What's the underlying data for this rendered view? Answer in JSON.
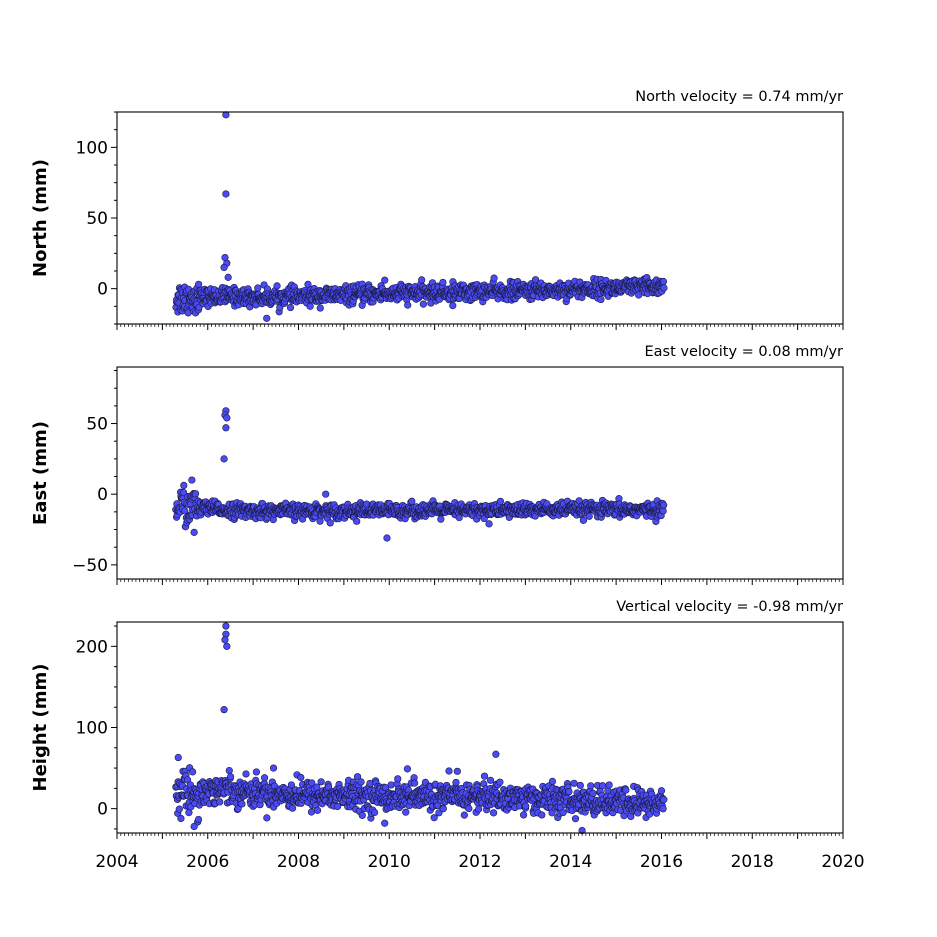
{
  "chart_data": [
    {
      "type": "scatter",
      "title": "North velocity = 0.74 mm/yr",
      "xlabel": "",
      "ylabel": "North (mm)",
      "xlim": [
        2004,
        2020
      ],
      "ylim": [
        -25,
        125
      ],
      "xticks": [
        2004,
        2006,
        2008,
        2010,
        2012,
        2014,
        2016,
        2018,
        2020
      ],
      "yticks": [
        0,
        50,
        100
      ],
      "x_tick_labels_visible": false,
      "marker_color": "#4b4bf5",
      "marker_edge": "#1a1a40",
      "span": [
        2005.3,
        2016.05
      ],
      "series": [
        {
          "x": [
            2005.3,
            2005.8,
            2006.4,
            2007.0,
            2007.5,
            2008.0,
            2008.5,
            2009.0,
            2009.5,
            2010.0,
            2010.5,
            2011.0,
            2011.5,
            2012.0,
            2012.5,
            2013.0,
            2013.5,
            2014.0,
            2014.5,
            2015.0,
            2015.5,
            2016.05
          ],
          "y": [
            -7.0,
            -6.0,
            -5.5,
            -6.0,
            -6.0,
            -5.5,
            -5.0,
            -4.5,
            -4.0,
            -3.5,
            -3.0,
            -3.0,
            -2.5,
            -2.0,
            -2.0,
            -1.5,
            -1.0,
            -0.5,
            0.0,
            0.5,
            1.0,
            1.5
          ]
        }
      ],
      "outliers": [
        {
          "x": 2006.4,
          "y": 123
        },
        {
          "x": 2006.4,
          "y": 67
        },
        {
          "x": 2006.38,
          "y": 22
        },
        {
          "x": 2006.42,
          "y": 18
        },
        {
          "x": 2006.36,
          "y": 15
        },
        {
          "x": 2006.45,
          "y": 8
        },
        {
          "x": 2007.3,
          "y": -21
        },
        {
          "x": 2011.4,
          "y": -12
        },
        {
          "x": 2009.9,
          "y": 6
        }
      ]
    },
    {
      "type": "scatter",
      "title": "East velocity = 0.08 mm/yr",
      "xlabel": "",
      "ylabel": "East (mm)",
      "xlim": [
        2004,
        2020
      ],
      "ylim": [
        -60,
        90
      ],
      "xticks": [
        2004,
        2006,
        2008,
        2010,
        2012,
        2014,
        2016,
        2018,
        2020
      ],
      "yticks": [
        -50,
        0,
        50
      ],
      "x_tick_labels_visible": false,
      "marker_color": "#4b4bf5",
      "marker_edge": "#1a1a40",
      "span": [
        2005.3,
        2016.05
      ],
      "series": [
        {
          "x": [
            2005.3,
            2005.8,
            2006.4,
            2007.0,
            2008.0,
            2009.0,
            2010.0,
            2011.0,
            2012.0,
            2013.0,
            2014.0,
            2015.0,
            2016.05
          ],
          "y": [
            -8.0,
            -10.0,
            -11.0,
            -12.0,
            -12.0,
            -12.0,
            -11.5,
            -11.5,
            -11.5,
            -11.0,
            -11.0,
            -11.0,
            -11.0
          ]
        }
      ],
      "outliers": [
        {
          "x": 2006.4,
          "y": 59
        },
        {
          "x": 2006.38,
          "y": 56
        },
        {
          "x": 2006.42,
          "y": 54
        },
        {
          "x": 2006.4,
          "y": 47
        },
        {
          "x": 2006.36,
          "y": 25
        },
        {
          "x": 2009.95,
          "y": -31
        },
        {
          "x": 2005.7,
          "y": -27
        },
        {
          "x": 2005.65,
          "y": 10
        },
        {
          "x": 2008.6,
          "y": 0
        },
        {
          "x": 2012.2,
          "y": -21
        }
      ]
    },
    {
      "type": "scatter",
      "title": "Vertical velocity = -0.98 mm/yr",
      "xlabel": "",
      "ylabel": "Height (mm)",
      "xlim": [
        2004,
        2020
      ],
      "ylim": [
        -30,
        230
      ],
      "xticks": [
        2004,
        2006,
        2008,
        2010,
        2012,
        2014,
        2016,
        2018,
        2020
      ],
      "xtick_labels": [
        "2004",
        "2006",
        "2008",
        "2010",
        "2012",
        "2014",
        "2016",
        "2018",
        "2020"
      ],
      "yticks": [
        0,
        100,
        200
      ],
      "x_tick_labels_visible": true,
      "marker_color": "#4b4bf5",
      "marker_edge": "#1a1a40",
      "span": [
        2005.3,
        2016.05
      ],
      "series": [
        {
          "x": [
            2005.3,
            2005.8,
            2006.4,
            2007.0,
            2008.0,
            2009.0,
            2010.0,
            2011.0,
            2012.0,
            2013.0,
            2014.0,
            2015.0,
            2016.05
          ],
          "y": [
            22.0,
            20.0,
            25.0,
            20.0,
            17.0,
            16.0,
            15.0,
            14.0,
            15.0,
            13.0,
            10.0,
            8.0,
            6.0
          ]
        }
      ],
      "outliers": [
        {
          "x": 2006.4,
          "y": 225
        },
        {
          "x": 2006.4,
          "y": 215
        },
        {
          "x": 2006.38,
          "y": 208
        },
        {
          "x": 2006.42,
          "y": 200
        },
        {
          "x": 2006.36,
          "y": 122
        },
        {
          "x": 2005.35,
          "y": 63
        },
        {
          "x": 2012.35,
          "y": 67
        },
        {
          "x": 2007.45,
          "y": 50
        },
        {
          "x": 2010.4,
          "y": 49
        },
        {
          "x": 2011.5,
          "y": 46
        },
        {
          "x": 2014.25,
          "y": -27
        },
        {
          "x": 2005.7,
          "y": -22
        },
        {
          "x": 2009.9,
          "y": -18
        },
        {
          "x": 2012.1,
          "y": 40
        }
      ]
    }
  ]
}
